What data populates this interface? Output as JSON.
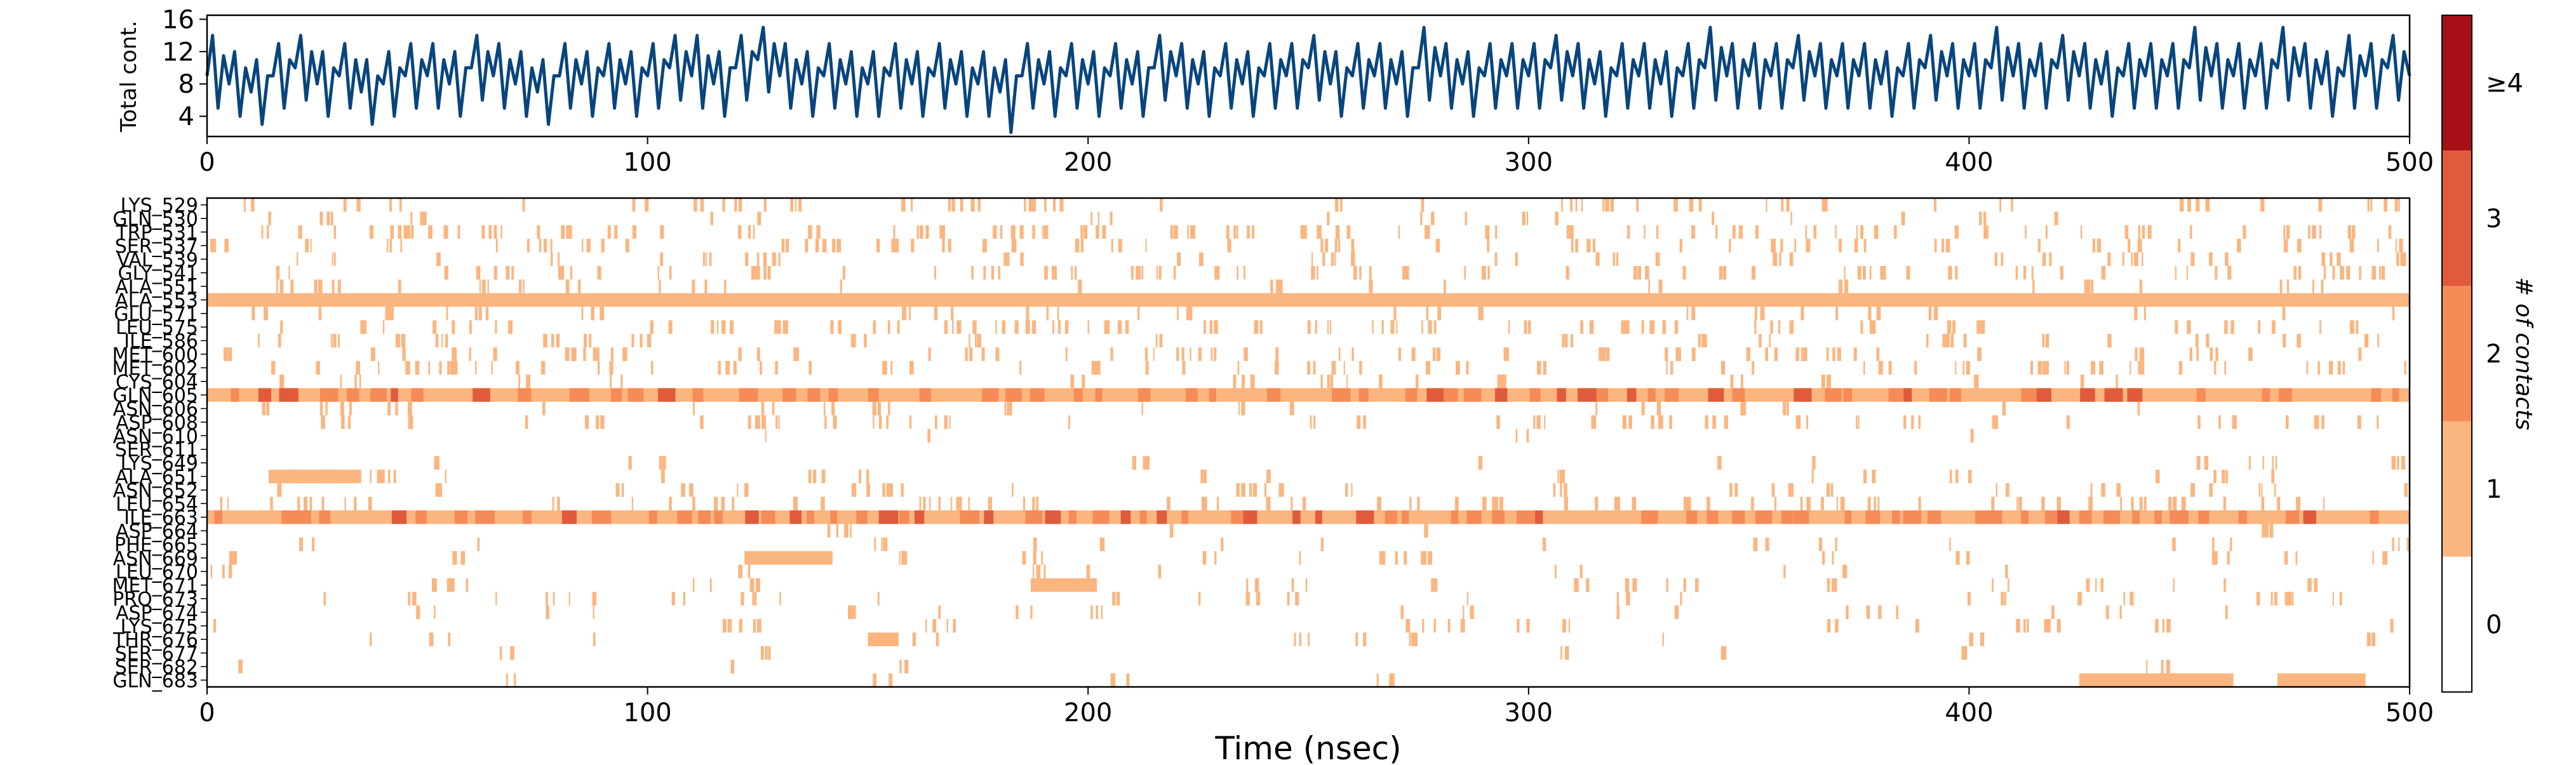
{
  "chart_data": [
    {
      "type": "line",
      "ylabel": "Total cont.",
      "xlim": [
        0,
        500
      ],
      "ylim": [
        1.5,
        16.5
      ],
      "xticks": [
        0,
        100,
        200,
        300,
        400,
        500
      ],
      "xtick_labels": [
        "0",
        "100",
        "200",
        "300",
        "400",
        "500"
      ],
      "yticks": [
        4,
        8,
        12,
        16
      ],
      "ytick_labels": [
        "4",
        "8",
        "12",
        "16"
      ],
      "color": "#08457e",
      "series": [
        {
          "x": [
            0,
            5,
            10,
            15,
            20,
            25,
            30,
            35,
            40,
            45,
            50,
            55,
            60,
            65,
            70,
            75,
            80,
            85,
            90,
            95,
            100,
            105,
            110,
            115,
            120,
            125,
            130,
            135,
            140,
            145,
            150,
            155,
            160,
            165,
            170,
            175,
            180,
            185,
            190,
            195,
            200,
            205,
            210,
            215,
            220,
            225,
            230,
            235,
            240,
            245,
            250,
            255,
            260,
            265,
            270,
            275,
            280,
            285,
            290,
            295,
            300,
            305,
            310,
            315,
            320,
            325,
            330,
            335,
            340,
            345,
            350,
            355,
            360,
            365,
            370,
            375,
            380,
            385,
            390,
            395,
            400,
            405,
            410,
            415,
            420,
            425,
            430,
            435,
            440,
            445,
            450,
            455,
            460,
            465,
            470,
            475,
            480,
            485,
            490,
            495,
            500
          ],
          "y": [
            9,
            8,
            7,
            9,
            10,
            8,
            9,
            7,
            8,
            9,
            9,
            8,
            10,
            9,
            8,
            7,
            9,
            8,
            9,
            8,
            9,
            10,
            9,
            8,
            10,
            11,
            9,
            8,
            9,
            8,
            8,
            9,
            8,
            9,
            8,
            8,
            7,
            9,
            8,
            9,
            8,
            9,
            8,
            10,
            9,
            8,
            9,
            8,
            9,
            9,
            10,
            8,
            9,
            9,
            8,
            10,
            9,
            8,
            9,
            9,
            9,
            10,
            9,
            8,
            9,
            9,
            8,
            9,
            10,
            9,
            9,
            9,
            10,
            9,
            9,
            9,
            8,
            9,
            10,
            9,
            9,
            10,
            9,
            9,
            10,
            9,
            8,
            9,
            9,
            9,
            10,
            9,
            9,
            9,
            10,
            9,
            8,
            9,
            9,
            10,
            9
          ],
          "y_min": [
            5,
            4,
            3,
            5,
            6,
            4,
            5,
            3,
            4,
            5,
            5,
            4,
            6,
            5,
            4,
            3,
            5,
            4,
            5,
            4,
            5,
            6,
            5,
            4,
            6,
            7,
            5,
            4,
            5,
            4,
            4,
            5,
            4,
            5,
            4,
            4,
            2,
            5,
            4,
            5,
            4,
            5,
            4,
            6,
            5,
            4,
            5,
            4,
            5,
            5,
            6,
            4,
            5,
            5,
            4,
            6,
            5,
            4,
            5,
            5,
            5,
            6,
            5,
            4,
            5,
            5,
            4,
            5,
            6,
            5,
            5,
            5,
            6,
            5,
            5,
            5,
            4,
            5,
            6,
            5,
            5,
            6,
            5,
            5,
            6,
            5,
            4,
            5,
            5,
            5,
            6,
            5,
            5,
            5,
            6,
            5,
            4,
            5,
            5,
            6,
            4
          ],
          "y_max": [
            14,
            12,
            11,
            13,
            14,
            12,
            13,
            11,
            12,
            13,
            13,
            12,
            14,
            13,
            12,
            11,
            13,
            12,
            13,
            12,
            13,
            14,
            14,
            12,
            14,
            15,
            13,
            12,
            13,
            12,
            12,
            13,
            12,
            13,
            12,
            12,
            11,
            13,
            12,
            13,
            12,
            13,
            12,
            14,
            13,
            12,
            13,
            12,
            13,
            13,
            14,
            12,
            13,
            13,
            12,
            15,
            13,
            12,
            13,
            13,
            13,
            14,
            13,
            12,
            13,
            13,
            12,
            13,
            15,
            13,
            13,
            13,
            14,
            13,
            13,
            13,
            12,
            13,
            14,
            13,
            13,
            15,
            13,
            13,
            14,
            13,
            12,
            13,
            13,
            13,
            15,
            13,
            13,
            13,
            15,
            13,
            12,
            14,
            13,
            14,
            13
          ]
        }
      ]
    },
    {
      "type": "heatmap",
      "xlabel": "Time (nsec)",
      "xlim": [
        0,
        500
      ],
      "xticks": [
        0,
        100,
        200,
        300,
        400,
        500
      ],
      "xtick_labels": [
        "0",
        "100",
        "200",
        "300",
        "400",
        "500"
      ],
      "bin_width": 5,
      "rows": [
        "LYS_529",
        "GLN_530",
        "TRP_531",
        "SER_537",
        "VAL_539",
        "GLY_541",
        "ALA_551",
        "ALA_553",
        "GLU_571",
        "LEU_575",
        "ILE_586",
        "MET_600",
        "MET_602",
        "CYS_604",
        "GLN_605",
        "ASN_606",
        "ASP_608",
        "ASN_610",
        "SER_611",
        "LYS_649",
        "ALA_651",
        "ASN_652",
        "LEU_654",
        "ILE_663",
        "ASP_664",
        "PHE_665",
        "ASN_669",
        "LEU_670",
        "MET_671",
        "PRO_673",
        "ASP_674",
        "LYS_675",
        "THR_676",
        "SER_677",
        "SER_682",
        "GLN_683"
      ],
      "row_labels_shown": [
        "LYS_529",
        "GLN_530",
        "TRP_531",
        "SER_537",
        "VAL_539",
        "GLY_541",
        "ALA_551",
        "ALA_553",
        "GLU_571",
        "LEU_575",
        "ILE_586",
        "MET_600",
        "MET_602",
        "CYS_604",
        "GLN_605",
        "ASN_606",
        "ASP_608",
        "ASN_610",
        "SER_611",
        "LYS_649",
        "ALA_651",
        "ASN_652",
        "LEU_654",
        "ILE_663",
        "ASP_664",
        "PHE_665",
        "ASN_669",
        "LEU_670",
        "MET_671",
        "PRO_673",
        "ASP_674",
        "LYS_675",
        "THR_676",
        "SER_677",
        "SER_682",
        "GLN_683"
      ],
      "occupancy": [
        0.35,
        0.12,
        0.55,
        0.5,
        0.18,
        0.45,
        0.25,
        1.0,
        0.25,
        0.45,
        0.18,
        0.35,
        0.5,
        0.15,
        1.0,
        0.2,
        0.25,
        0.03,
        0.02,
        0.08,
        0.12,
        0.22,
        0.55,
        1.0,
        0.12,
        0.1,
        0.12,
        0.12,
        0.18,
        0.2,
        0.2,
        0.12,
        0.15,
        0.1,
        0.05,
        0.06
      ],
      "level": [
        1,
        1,
        1,
        1,
        1,
        1,
        1,
        1,
        1,
        1,
        1,
        1,
        1,
        1,
        2,
        1,
        1,
        1,
        1,
        1,
        1,
        1,
        1,
        2,
        1,
        1,
        1,
        1,
        1,
        1,
        1,
        1,
        1,
        1,
        1,
        1
      ],
      "segments": [
        {
          "row": "ASN_669",
          "level": 1,
          "x0": 122,
          "x1": 142
        },
        {
          "row": "MET_671",
          "level": 1,
          "x0": 187,
          "x1": 202
        },
        {
          "row": "ALA_651",
          "level": 1,
          "x0": 14,
          "x1": 35
        },
        {
          "row": "THR_676",
          "level": 1,
          "x0": 150,
          "x1": 157
        },
        {
          "row": "GLN_683",
          "level": 1,
          "x0": 425,
          "x1": 460
        },
        {
          "row": "GLN_683",
          "level": 1,
          "x0": 470,
          "x1": 490
        }
      ]
    },
    {
      "type": "colorbar",
      "label": "# of contacts",
      "ticks": [
        "0",
        "1",
        "2",
        "3",
        "≥4"
      ],
      "colors": [
        "#ffffff",
        "#fbb57f",
        "#f58b57",
        "#e05a3e",
        "#a50f15"
      ]
    }
  ]
}
